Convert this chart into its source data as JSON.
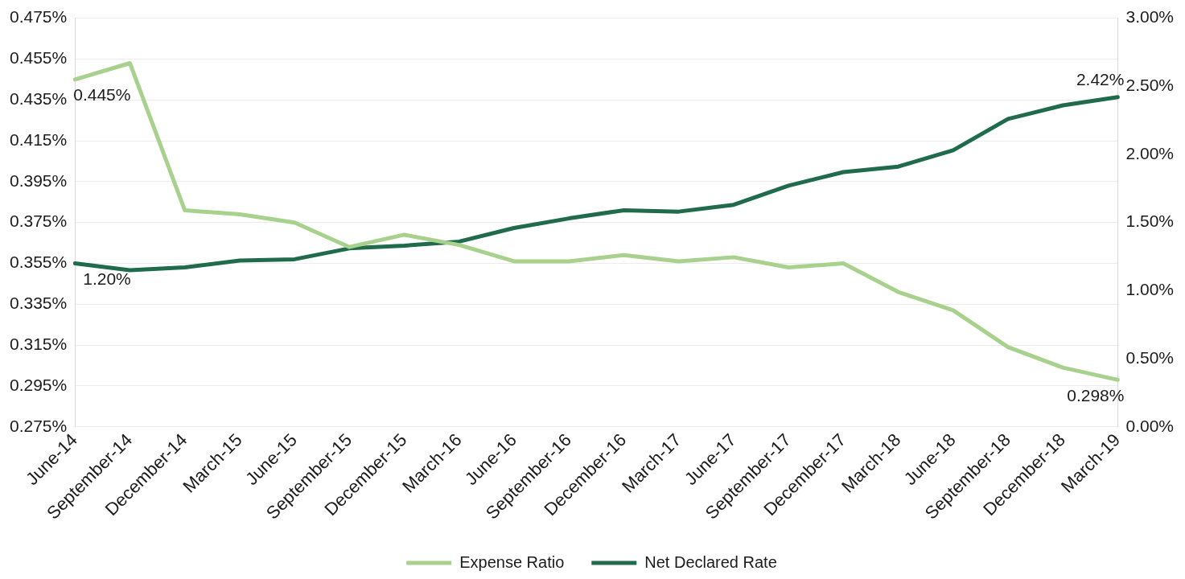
{
  "chart_data": {
    "type": "line",
    "categories": [
      "June-14",
      "September-14",
      "December-14",
      "March-15",
      "June-15",
      "September-15",
      "December-15",
      "March-16",
      "June-16",
      "September-16",
      "December-16",
      "March-17",
      "June-17",
      "September-17",
      "December-17",
      "March-18",
      "June-18",
      "September-18",
      "December-18",
      "March-19"
    ],
    "series": [
      {
        "name": "Expense Ratio",
        "color": "#a9d18e",
        "values": [
          0.445,
          0.453,
          0.381,
          0.379,
          0.375,
          0.363,
          0.369,
          0.364,
          0.356,
          0.356,
          0.359,
          0.356,
          0.358,
          0.353,
          0.355,
          0.341,
          0.332,
          0.314,
          0.304,
          0.298
        ],
        "value_labels": [
          "0.445%",
          null,
          null,
          null,
          null,
          null,
          null,
          null,
          null,
          null,
          null,
          null,
          null,
          null,
          null,
          null,
          null,
          null,
          null,
          "0.298%"
        ]
      },
      {
        "name": "Net Declared Rate",
        "color": "#1f6b4b",
        "axis": "y2",
        "values": [
          1.2,
          1.15,
          1.17,
          1.22,
          1.23,
          1.31,
          1.33,
          1.36,
          1.46,
          1.53,
          1.59,
          1.58,
          1.63,
          1.77,
          1.87,
          1.91,
          2.03,
          2.26,
          2.36,
          2.42
        ],
        "value_labels": [
          "1.20%",
          null,
          null,
          null,
          null,
          null,
          null,
          null,
          null,
          null,
          null,
          null,
          null,
          null,
          null,
          null,
          null,
          null,
          null,
          "2.42%"
        ]
      }
    ],
    "ylim": [
      0.275,
      0.475
    ],
    "yticks": [
      {
        "value": 0.275,
        "label": "0.275%"
      },
      {
        "value": 0.295,
        "label": "0.295%"
      },
      {
        "value": 0.315,
        "label": "0.315%"
      },
      {
        "value": 0.335,
        "label": "0.335%"
      },
      {
        "value": 0.355,
        "label": "0.355%"
      },
      {
        "value": 0.375,
        "label": "0.375%"
      },
      {
        "value": 0.395,
        "label": "0.395%"
      },
      {
        "value": 0.415,
        "label": "0.415%"
      },
      {
        "value": 0.435,
        "label": "0.435%"
      },
      {
        "value": 0.455,
        "label": "0.455%"
      },
      {
        "value": 0.475,
        "label": "0.475%"
      }
    ],
    "y2lim": [
      0,
      3
    ],
    "y2ticks": [
      {
        "value": 0,
        "label": "0.00%"
      },
      {
        "value": 0.5,
        "label": "0.50%"
      },
      {
        "value": 1,
        "label": "1.00%"
      },
      {
        "value": 1.5,
        "label": "1.50%"
      },
      {
        "value": 2,
        "label": "2.00%"
      },
      {
        "value": 2.5,
        "label": "2.50%"
      },
      {
        "value": 3,
        "label": "3.00%"
      }
    ],
    "grid": "y",
    "legend": "bottom",
    "marker": "none",
    "line_style": "solid"
  }
}
